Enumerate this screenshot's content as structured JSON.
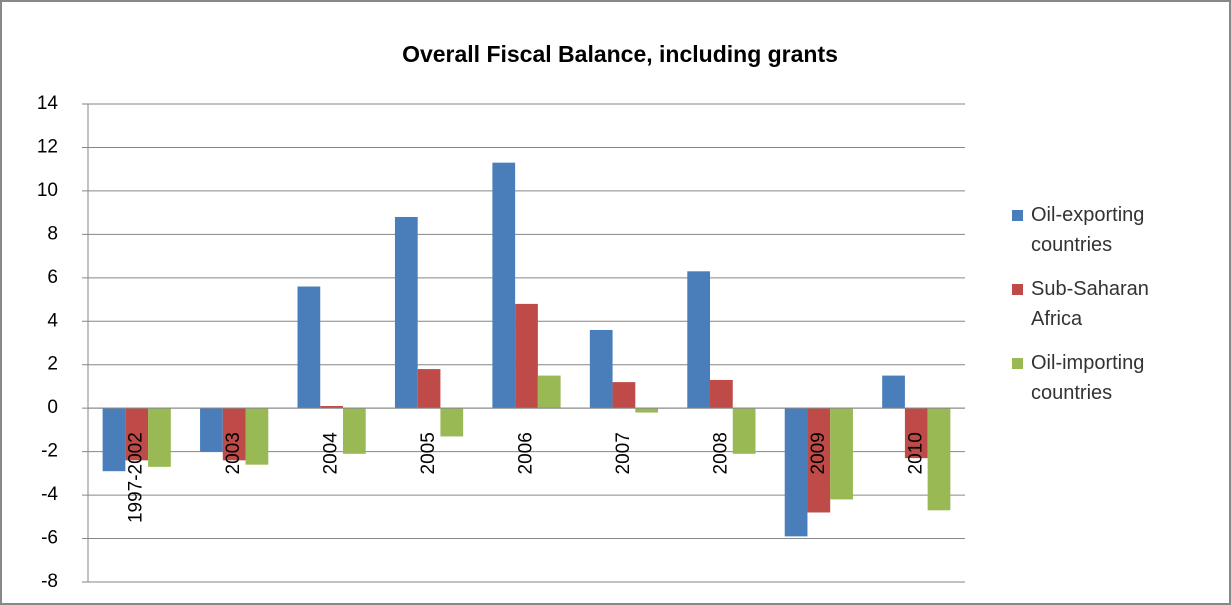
{
  "chart_data": {
    "type": "bar",
    "title": "Overall Fiscal Balance, including grants",
    "categories": [
      "1997-2002",
      "2003",
      "2004",
      "2005",
      "2006",
      "2007",
      "2008",
      "2009",
      "2010"
    ],
    "series": [
      {
        "name": "Oil-exporting countries",
        "color": "#4a7ebb",
        "values": [
          -2.9,
          -2.0,
          5.6,
          8.8,
          11.3,
          3.6,
          6.3,
          -5.9,
          1.5
        ]
      },
      {
        "name": "Sub-Saharan Africa",
        "color": "#be4b48",
        "values": [
          -2.4,
          -2.4,
          0.1,
          1.8,
          4.8,
          1.2,
          1.3,
          -4.8,
          -2.3
        ]
      },
      {
        "name": "Oil-importing countries",
        "color": "#98b954",
        "values": [
          -2.7,
          -2.6,
          -2.1,
          -1.3,
          1.5,
          -0.2,
          -2.1,
          -4.2,
          -4.7
        ]
      }
    ],
    "ylim": [
      -8,
      14
    ],
    "yticks": [
      -8,
      -6,
      -4,
      -2,
      0,
      2,
      4,
      6,
      8,
      10,
      12,
      14
    ],
    "grid": true,
    "legend": "right"
  }
}
